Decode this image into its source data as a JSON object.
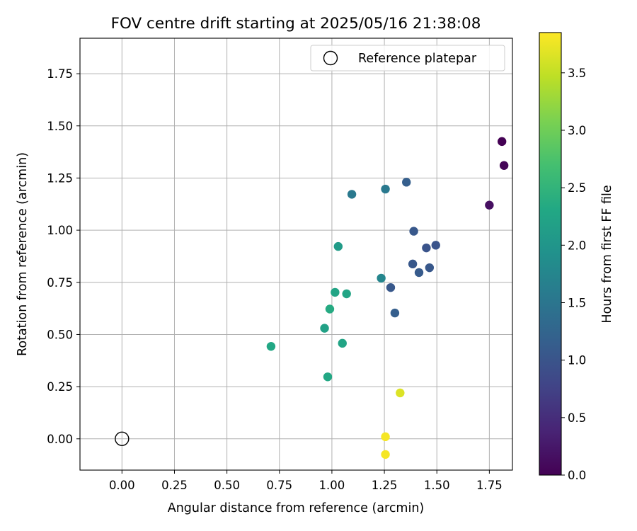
{
  "chart_data": {
    "type": "scatter",
    "title": "FOV centre drift starting at 2025/05/16 21:38:08",
    "xlabel": "Angular distance from reference (arcmin)",
    "ylabel": "Rotation from reference (arcmin)",
    "xlim": [
      -0.2,
      1.86
    ],
    "ylim": [
      -0.15,
      1.92
    ],
    "xticks": [
      0.0,
      0.25,
      0.5,
      0.75,
      1.0,
      1.25,
      1.5,
      1.75
    ],
    "xtick_labels": [
      "0.00",
      "0.25",
      "0.50",
      "0.75",
      "1.00",
      "1.25",
      "1.50",
      "1.75"
    ],
    "yticks": [
      0.0,
      0.25,
      0.5,
      0.75,
      1.0,
      1.25,
      1.5,
      1.75
    ],
    "ytick_labels": [
      "0.00",
      "0.25",
      "0.50",
      "0.75",
      "1.00",
      "1.25",
      "1.50",
      "1.75"
    ],
    "grid": true,
    "legend": {
      "placement": "top-right",
      "entries": [
        "Reference platepar"
      ]
    },
    "reference_point": {
      "name": "Reference platepar",
      "x": 0.0,
      "y": 0.0
    },
    "colorbar": {
      "label": "Hours from first FF file",
      "colormap": "viridis",
      "range": [
        0.0,
        3.85
      ],
      "ticks": [
        0.0,
        0.5,
        1.0,
        1.5,
        2.0,
        2.5,
        3.0,
        3.5
      ],
      "tick_labels": [
        "0.0",
        "0.5",
        "1.0",
        "1.5",
        "2.0",
        "2.5",
        "3.0",
        "3.5"
      ]
    },
    "points": [
      {
        "x": 1.81,
        "y": 1.425,
        "hours": 0.0
      },
      {
        "x": 1.82,
        "y": 1.31,
        "hours": 0.05
      },
      {
        "x": 1.75,
        "y": 1.12,
        "hours": 0.15
      },
      {
        "x": 1.355,
        "y": 1.23,
        "hours": 1.15
      },
      {
        "x": 1.39,
        "y": 0.995,
        "hours": 1.05
      },
      {
        "x": 1.45,
        "y": 0.915,
        "hours": 1.0
      },
      {
        "x": 1.495,
        "y": 0.928,
        "hours": 1.0
      },
      {
        "x": 1.385,
        "y": 0.838,
        "hours": 1.05
      },
      {
        "x": 1.415,
        "y": 0.797,
        "hours": 1.1
      },
      {
        "x": 1.465,
        "y": 0.82,
        "hours": 1.05
      },
      {
        "x": 1.28,
        "y": 0.725,
        "hours": 1.05
      },
      {
        "x": 1.3,
        "y": 0.603,
        "hours": 1.15
      },
      {
        "x": 1.095,
        "y": 1.172,
        "hours": 1.55
      },
      {
        "x": 1.255,
        "y": 1.197,
        "hours": 1.55
      },
      {
        "x": 1.235,
        "y": 0.77,
        "hours": 1.75
      },
      {
        "x": 1.03,
        "y": 0.922,
        "hours": 2.1
      },
      {
        "x": 1.015,
        "y": 0.702,
        "hours": 2.25
      },
      {
        "x": 1.07,
        "y": 0.695,
        "hours": 2.25
      },
      {
        "x": 0.99,
        "y": 0.622,
        "hours": 2.35
      },
      {
        "x": 0.965,
        "y": 0.53,
        "hours": 2.2
      },
      {
        "x": 1.05,
        "y": 0.458,
        "hours": 2.25
      },
      {
        "x": 0.71,
        "y": 0.443,
        "hours": 2.3
      },
      {
        "x": 0.98,
        "y": 0.297,
        "hours": 2.3
      },
      {
        "x": 1.325,
        "y": 0.22,
        "hours": 3.65
      },
      {
        "x": 1.255,
        "y": 0.01,
        "hours": 3.8
      },
      {
        "x": 1.255,
        "y": -0.075,
        "hours": 3.8
      }
    ]
  }
}
